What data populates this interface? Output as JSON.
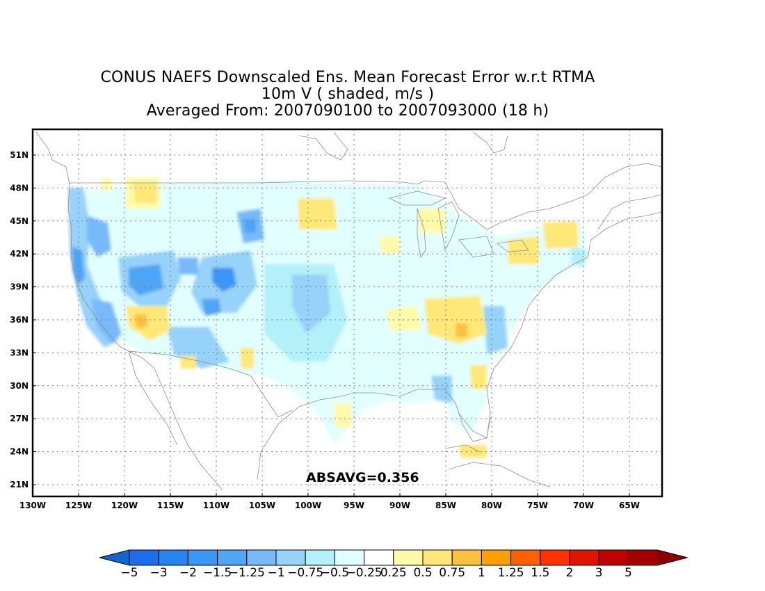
{
  "title": {
    "line1": "CONUS NAEFS Downscaled Ens. Mean Forecast Error w.r.t RTMA",
    "line2": "10m V ( shaded, m/s )",
    "line3": "Averaged From: 2007090100 to 2007093000 (18 h)"
  },
  "map": {
    "lon_labels": [
      "130W",
      "125W",
      "120W",
      "115W",
      "110W",
      "105W",
      "100W",
      "95W",
      "90W",
      "85W",
      "80W",
      "75W",
      "70W",
      "65W"
    ],
    "lat_labels": [
      "51N",
      "48N",
      "45N",
      "42N",
      "39N",
      "36N",
      "33N",
      "30N",
      "27N",
      "24N",
      "21N"
    ],
    "lon_values": [
      -130,
      -125,
      -120,
      -115,
      -110,
      -105,
      -100,
      -95,
      -90,
      -85,
      -80,
      -75,
      -70,
      -65
    ],
    "lat_values": [
      51,
      48,
      45,
      42,
      39,
      36,
      33,
      30,
      27,
      24,
      21
    ],
    "grid": "dotted",
    "absavg_text": "ABSAVG=0.356"
  },
  "colorbar": {
    "labels": [
      "−5",
      "−3",
      "−2",
      "−1.5",
      "−1.25",
      "−1",
      "−0.75",
      "−0.5",
      "−0.25",
      "0.25",
      "0.5",
      "0.75",
      "1",
      "1.25",
      "1.5",
      "2",
      "3",
      "5"
    ],
    "colors": [
      "#1e6eeb",
      "#2882f0",
      "#3c96f5",
      "#50a5f5",
      "#78b9fa",
      "#96d2fa",
      "#b4f0fa",
      "#e1ffff",
      "#ffffff",
      "#fffaaa",
      "#ffe878",
      "#ffc03c",
      "#ffa000",
      "#ff6000",
      "#ff3200",
      "#e11400",
      "#c00000",
      "#a50000"
    ],
    "left_arrow_color": "#1464d2",
    "right_arrow_color": "#8c0000"
  },
  "chart_data": {
    "type": "heatmap",
    "title": "CONUS NAEFS Downscaled Ens. Mean Forecast Error w.r.t RTMA",
    "subtitle": "10m V ( shaded, m/s )",
    "period": "Averaged From: 2007090100 to 2007093000 (18 h)",
    "xlim": [
      -130,
      -62
    ],
    "ylim": [
      20,
      53
    ],
    "annotation": "ABSAVG=0.356",
    "levels": [
      -5,
      -3,
      -2,
      -1.5,
      -1.25,
      -1,
      -0.75,
      -0.5,
      -0.25,
      0.25,
      0.5,
      0.75,
      1,
      1.25,
      1.5,
      2,
      3,
      5
    ]
  }
}
